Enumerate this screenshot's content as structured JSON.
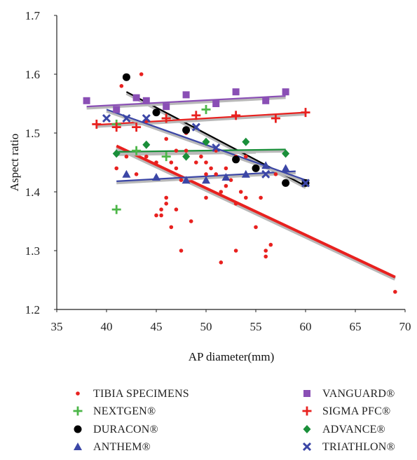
{
  "chart_data": {
    "type": "scatter",
    "xlabel": "AP diameter(mm)",
    "ylabel": "Aspect ratio",
    "xlim": [
      35,
      70
    ],
    "ylim": [
      1.2,
      1.7
    ],
    "xticks": [
      "35",
      "40",
      "45",
      "50",
      "55",
      "60",
      "65",
      "70"
    ],
    "yticks": [
      "1.2",
      "1.3",
      "1.4",
      "1.5",
      "1.6",
      "1.7"
    ],
    "grid": false,
    "legend_position": "bottom",
    "series": [
      {
        "name": "TIBIA SPECIMENS",
        "marker": "circle-small",
        "color": "#e8211f",
        "trend": [
          [
            41,
            1.478
          ],
          [
            69,
            1.255
          ]
        ],
        "points": [
          [
            41.5,
            1.58
          ],
          [
            43.5,
            1.6
          ],
          [
            41,
            1.44
          ],
          [
            42,
            1.46
          ],
          [
            43,
            1.43
          ],
          [
            44,
            1.52
          ],
          [
            44,
            1.46
          ],
          [
            45,
            1.45
          ],
          [
            45,
            1.36
          ],
          [
            45.5,
            1.37
          ],
          [
            46,
            1.38
          ],
          [
            46,
            1.39
          ],
          [
            45.5,
            1.36
          ],
          [
            46.5,
            1.45
          ],
          [
            47,
            1.47
          ],
          [
            47,
            1.44
          ],
          [
            47,
            1.37
          ],
          [
            46.5,
            1.34
          ],
          [
            47.5,
            1.3
          ],
          [
            48,
            1.47
          ],
          [
            48,
            1.5
          ],
          [
            48.5,
            1.35
          ],
          [
            49,
            1.45
          ],
          [
            49.5,
            1.46
          ],
          [
            50,
            1.45
          ],
          [
            50,
            1.43
          ],
          [
            50.5,
            1.44
          ],
          [
            51,
            1.47
          ],
          [
            51,
            1.43
          ],
          [
            51.5,
            1.4
          ],
          [
            52,
            1.41
          ],
          [
            52,
            1.44
          ],
          [
            52.5,
            1.42
          ],
          [
            53,
            1.38
          ],
          [
            53,
            1.46
          ],
          [
            53.5,
            1.4
          ],
          [
            54,
            1.39
          ],
          [
            54,
            1.46
          ],
          [
            55,
            1.34
          ],
          [
            55.5,
            1.39
          ],
          [
            56,
            1.29
          ],
          [
            56,
            1.3
          ],
          [
            56.5,
            1.31
          ],
          [
            57,
            1.43
          ],
          [
            51.5,
            1.28
          ],
          [
            53,
            1.3
          ],
          [
            50,
            1.39
          ],
          [
            69,
            1.23
          ],
          [
            46,
            1.49
          ],
          [
            47.5,
            1.42
          ]
        ]
      },
      {
        "name": "NEXTGEN®",
        "marker": "plus",
        "color": "#4cb648",
        "trend": [
          [
            41,
            1.466
          ],
          [
            55,
            1.47
          ]
        ],
        "points": [
          [
            41,
            1.37
          ],
          [
            41,
            1.515
          ],
          [
            43,
            1.47
          ],
          [
            46,
            1.46
          ],
          [
            46,
            1.525
          ],
          [
            50,
            1.54
          ]
        ]
      },
      {
        "name": "DURACON®",
        "marker": "circle",
        "color": "#000000",
        "trend": [
          [
            42,
            1.57
          ],
          [
            60,
            1.41
          ]
        ],
        "points": [
          [
            42,
            1.595
          ],
          [
            45,
            1.535
          ],
          [
            48,
            1.505
          ],
          [
            53,
            1.455
          ],
          [
            55,
            1.44
          ],
          [
            58,
            1.415
          ],
          [
            60,
            1.415
          ]
        ]
      },
      {
        "name": "ANTHEM®",
        "marker": "triangle",
        "color": "#3b46a6",
        "trend": [
          [
            41,
            1.418
          ],
          [
            59,
            1.435
          ]
        ],
        "points": [
          [
            42,
            1.43
          ],
          [
            45,
            1.425
          ],
          [
            48,
            1.42
          ],
          [
            50,
            1.42
          ],
          [
            52,
            1.425
          ],
          [
            54,
            1.43
          ],
          [
            56,
            1.445
          ],
          [
            58,
            1.44
          ]
        ]
      },
      {
        "name": "VANGUARD®",
        "marker": "square",
        "color": "#8a4fb5",
        "trend": [
          [
            38,
            1.545
          ],
          [
            58,
            1.563
          ]
        ],
        "points": [
          [
            38,
            1.555
          ],
          [
            41,
            1.54
          ],
          [
            43,
            1.56
          ],
          [
            44,
            1.555
          ],
          [
            46,
            1.545
          ],
          [
            48,
            1.565
          ],
          [
            51,
            1.55
          ],
          [
            53,
            1.57
          ],
          [
            56,
            1.555
          ],
          [
            58,
            1.57
          ]
        ]
      },
      {
        "name": "SIGMA PFC®",
        "marker": "plus",
        "color": "#e8211f",
        "trend": [
          [
            39,
            1.514
          ],
          [
            60,
            1.535
          ]
        ],
        "points": [
          [
            39,
            1.515
          ],
          [
            41,
            1.51
          ],
          [
            43,
            1.51
          ],
          [
            46,
            1.525
          ],
          [
            49,
            1.53
          ],
          [
            53,
            1.53
          ],
          [
            57,
            1.525
          ],
          [
            60,
            1.535
          ]
        ]
      },
      {
        "name": "ADVANCE®",
        "marker": "diamond",
        "color": "#1a8f3a",
        "trend": [
          [
            41,
            1.468
          ],
          [
            58,
            1.472
          ]
        ],
        "points": [
          [
            41,
            1.465
          ],
          [
            44,
            1.48
          ],
          [
            48,
            1.46
          ],
          [
            50,
            1.485
          ],
          [
            54,
            1.485
          ],
          [
            58,
            1.465
          ]
        ]
      },
      {
        "name": "TRIATHLON®",
        "marker": "cross",
        "color": "#3b46a6",
        "trend": [
          [
            40,
            1.54
          ],
          [
            60,
            1.42
          ]
        ],
        "points": [
          [
            40,
            1.525
          ],
          [
            42,
            1.525
          ],
          [
            44,
            1.525
          ],
          [
            49,
            1.51
          ],
          [
            51,
            1.475
          ],
          [
            56,
            1.43
          ],
          [
            60,
            1.415
          ]
        ]
      }
    ]
  }
}
